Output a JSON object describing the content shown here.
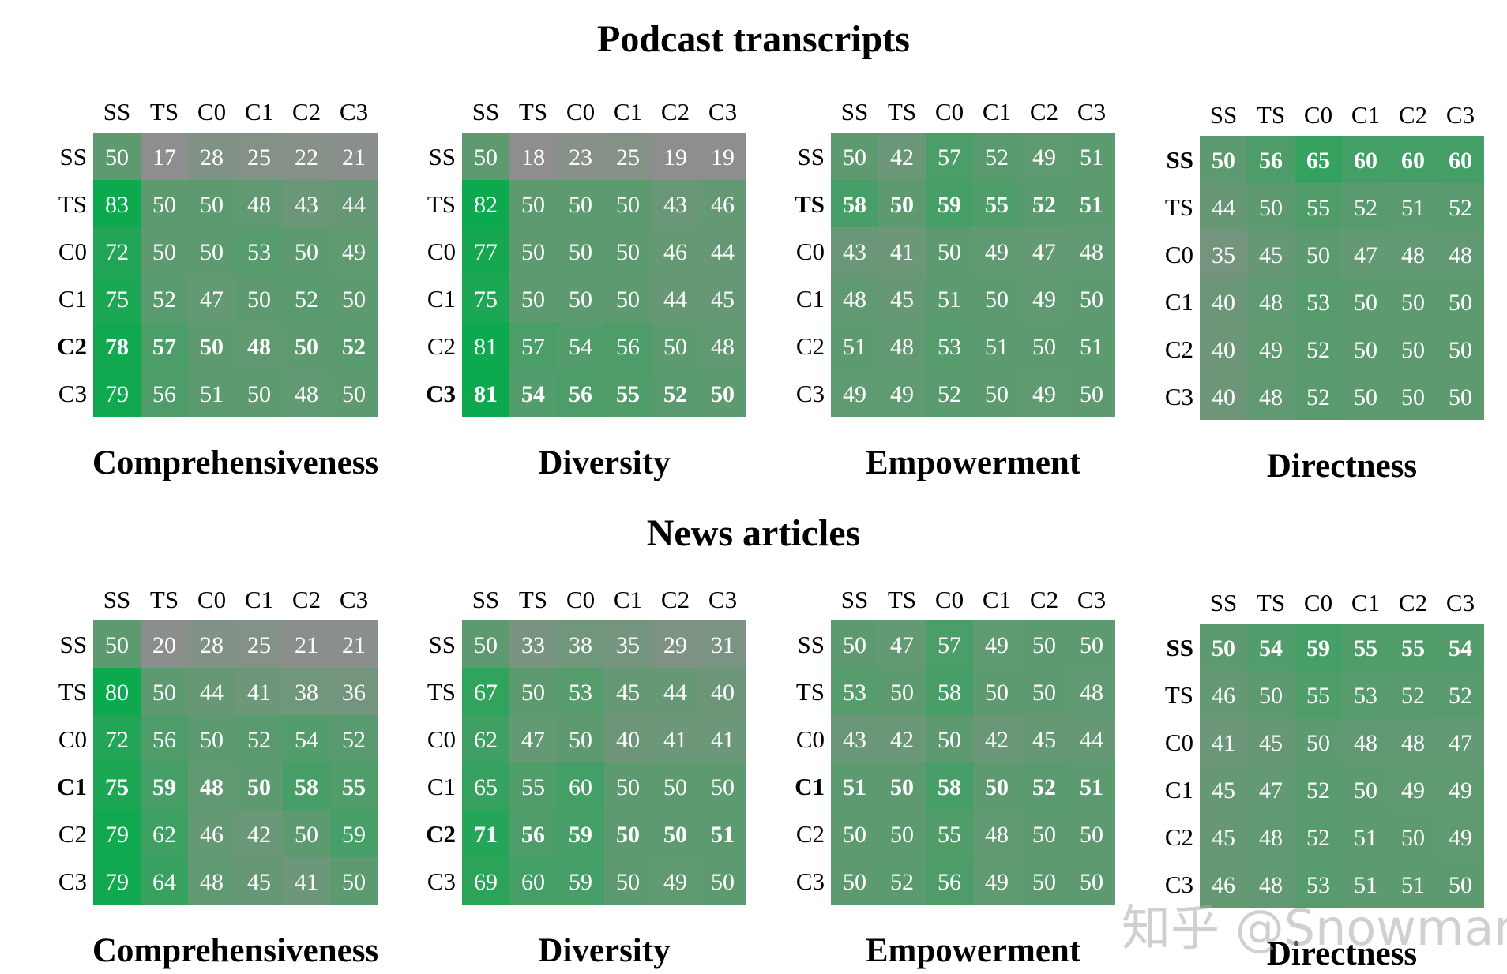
{
  "sections": [
    {
      "title": "Podcast transcripts"
    },
    {
      "title": "News articles"
    }
  ],
  "colors": {
    "green": "#0da94e",
    "gray": "#8e8e8e",
    "mid": "#5e9a70",
    "text": "#ffffff",
    "label": "#000000"
  },
  "watermark": "知乎 @Snowman",
  "chart_data": [
    {
      "type": "heatmap",
      "section": "Podcast transcripts",
      "title": "Comprehensiveness",
      "xlabels": [
        "SS",
        "TS",
        "C0",
        "C1",
        "C2",
        "C3"
      ],
      "ylabels": [
        "SS",
        "TS",
        "C0",
        "C1",
        "C2",
        "C3"
      ],
      "values": [
        [
          50,
          17,
          28,
          25,
          22,
          21
        ],
        [
          83,
          50,
          50,
          48,
          43,
          44
        ],
        [
          72,
          50,
          50,
          53,
          50,
          49
        ],
        [
          75,
          52,
          47,
          50,
          52,
          50
        ],
        [
          78,
          57,
          50,
          48,
          50,
          52
        ],
        [
          79,
          56,
          51,
          50,
          48,
          50
        ]
      ],
      "bold_row": 4
    },
    {
      "type": "heatmap",
      "section": "Podcast transcripts",
      "title": "Diversity",
      "xlabels": [
        "SS",
        "TS",
        "C0",
        "C1",
        "C2",
        "C3"
      ],
      "ylabels": [
        "SS",
        "TS",
        "C0",
        "C1",
        "C2",
        "C3"
      ],
      "values": [
        [
          50,
          18,
          23,
          25,
          19,
          19
        ],
        [
          82,
          50,
          50,
          50,
          43,
          46
        ],
        [
          77,
          50,
          50,
          50,
          46,
          44
        ],
        [
          75,
          50,
          50,
          50,
          44,
          45
        ],
        [
          81,
          57,
          54,
          56,
          50,
          48
        ],
        [
          81,
          54,
          56,
          55,
          52,
          50
        ]
      ],
      "bold_row": 5
    },
    {
      "type": "heatmap",
      "section": "Podcast transcripts",
      "title": "Empowerment",
      "xlabels": [
        "SS",
        "TS",
        "C0",
        "C1",
        "C2",
        "C3"
      ],
      "ylabels": [
        "SS",
        "TS",
        "C0",
        "C1",
        "C2",
        "C3"
      ],
      "values": [
        [
          50,
          42,
          57,
          52,
          49,
          51
        ],
        [
          58,
          50,
          59,
          55,
          52,
          51
        ],
        [
          43,
          41,
          50,
          49,
          47,
          48
        ],
        [
          48,
          45,
          51,
          50,
          49,
          50
        ],
        [
          51,
          48,
          53,
          51,
          50,
          51
        ],
        [
          49,
          49,
          52,
          50,
          49,
          50
        ]
      ],
      "bold_row": 1
    },
    {
      "type": "heatmap",
      "section": "Podcast transcripts",
      "title": "Directness",
      "xlabels": [
        "SS",
        "TS",
        "C0",
        "C1",
        "C2",
        "C3"
      ],
      "ylabels": [
        "SS",
        "TS",
        "C0",
        "C1",
        "C2",
        "C3"
      ],
      "values": [
        [
          50,
          56,
          65,
          60,
          60,
          60
        ],
        [
          44,
          50,
          55,
          52,
          51,
          52
        ],
        [
          35,
          45,
          50,
          47,
          48,
          48
        ],
        [
          40,
          48,
          53,
          50,
          50,
          50
        ],
        [
          40,
          49,
          52,
          50,
          50,
          50
        ],
        [
          40,
          48,
          52,
          50,
          50,
          50
        ]
      ],
      "bold_row": 0
    },
    {
      "type": "heatmap",
      "section": "News articles",
      "title": "Comprehensiveness",
      "xlabels": [
        "SS",
        "TS",
        "C0",
        "C1",
        "C2",
        "C3"
      ],
      "ylabels": [
        "SS",
        "TS",
        "C0",
        "C1",
        "C2",
        "C3"
      ],
      "values": [
        [
          50,
          20,
          28,
          25,
          21,
          21
        ],
        [
          80,
          50,
          44,
          41,
          38,
          36
        ],
        [
          72,
          56,
          50,
          52,
          54,
          52
        ],
        [
          75,
          59,
          48,
          50,
          58,
          55
        ],
        [
          79,
          62,
          46,
          42,
          50,
          59
        ],
        [
          79,
          64,
          48,
          45,
          41,
          50
        ]
      ],
      "bold_row": 3
    },
    {
      "type": "heatmap",
      "section": "News articles",
      "title": "Diversity",
      "xlabels": [
        "SS",
        "TS",
        "C0",
        "C1",
        "C2",
        "C3"
      ],
      "ylabels": [
        "SS",
        "TS",
        "C0",
        "C1",
        "C2",
        "C3"
      ],
      "values": [
        [
          50,
          33,
          38,
          35,
          29,
          31
        ],
        [
          67,
          50,
          53,
          45,
          44,
          40
        ],
        [
          62,
          47,
          50,
          40,
          41,
          41
        ],
        [
          65,
          55,
          60,
          50,
          50,
          50
        ],
        [
          71,
          56,
          59,
          50,
          50,
          51
        ],
        [
          69,
          60,
          59,
          50,
          49,
          50
        ]
      ],
      "bold_row": 4
    },
    {
      "type": "heatmap",
      "section": "News articles",
      "title": "Empowerment",
      "xlabels": [
        "SS",
        "TS",
        "C0",
        "C1",
        "C2",
        "C3"
      ],
      "ylabels": [
        "SS",
        "TS",
        "C0",
        "C1",
        "C2",
        "C3"
      ],
      "values": [
        [
          50,
          47,
          57,
          49,
          50,
          50
        ],
        [
          53,
          50,
          58,
          50,
          50,
          48
        ],
        [
          43,
          42,
          50,
          42,
          45,
          44
        ],
        [
          51,
          50,
          58,
          50,
          52,
          51
        ],
        [
          50,
          50,
          55,
          48,
          50,
          50
        ],
        [
          50,
          52,
          56,
          49,
          50,
          50
        ]
      ],
      "bold_row": 3
    },
    {
      "type": "heatmap",
      "section": "News articles",
      "title": "Directness",
      "xlabels": [
        "SS",
        "TS",
        "C0",
        "C1",
        "C2",
        "C3"
      ],
      "ylabels": [
        "SS",
        "TS",
        "C0",
        "C1",
        "C2",
        "C3"
      ],
      "values": [
        [
          50,
          54,
          59,
          55,
          55,
          54
        ],
        [
          46,
          50,
          55,
          53,
          52,
          52
        ],
        [
          41,
          45,
          50,
          48,
          48,
          47
        ],
        [
          45,
          47,
          52,
          50,
          49,
          49
        ],
        [
          45,
          48,
          52,
          51,
          50,
          49
        ],
        [
          46,
          48,
          53,
          51,
          51,
          50
        ]
      ],
      "bold_row": 0
    }
  ]
}
